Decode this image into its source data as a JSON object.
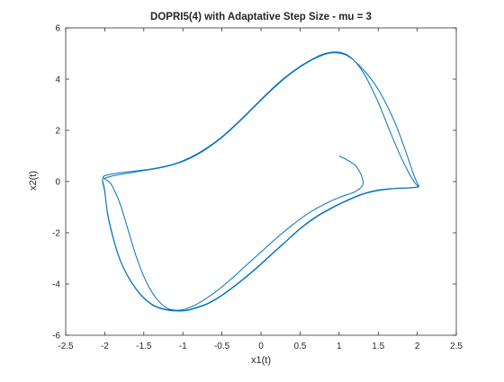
{
  "chart_data": {
    "type": "line",
    "title": "DOPRI5(4) with Adaptative Step Size - mu = 3",
    "xlabel": "x1(t)",
    "ylabel": "x2(t)",
    "xlim": [
      -2.5,
      2.5
    ],
    "ylim": [
      -6,
      6
    ],
    "xticks": [
      "-2.5",
      "-2",
      "-1.5",
      "-1",
      "-0.5",
      "0",
      "0.5",
      "1",
      "1.5",
      "2",
      "2.5"
    ],
    "yticks": [
      "-6",
      "-4",
      "-2",
      "0",
      "2",
      "4",
      "6"
    ],
    "grid": false,
    "legend": "none",
    "series": [
      {
        "color": "#0072BD",
        "x": [
          1.0,
          1.1,
          1.2,
          1.26,
          1.3,
          1.3,
          1.2,
          1.0,
          0.8,
          0.6,
          0.4,
          0.2,
          0.0,
          -0.2,
          -0.4,
          -0.6,
          -0.8,
          -0.9,
          -1.0,
          -1.1,
          -1.2,
          -1.3,
          -1.4,
          -1.5,
          -1.6,
          -1.7,
          -1.8,
          -1.9,
          -1.95,
          -2.0,
          -2.02,
          -2.0,
          -1.9,
          -1.7,
          -1.5,
          -1.3,
          -1.1,
          -0.9,
          -0.7,
          -0.5,
          -0.3,
          -0.1,
          0.1,
          0.3,
          0.5,
          0.7,
          0.8,
          0.9,
          1.0,
          1.1,
          1.2,
          1.3,
          1.4,
          1.5,
          1.6,
          1.7,
          1.8,
          1.9,
          1.97,
          2.0,
          2.02,
          2.0,
          1.9,
          1.7,
          1.5,
          1.3,
          1.1,
          0.9,
          0.7,
          0.5,
          0.3,
          0.1,
          -0.1,
          -0.3,
          -0.5,
          -0.7,
          -0.9,
          -1.0,
          -1.2,
          -1.4,
          -1.6,
          -1.8,
          -1.95,
          -2.0,
          -2.03,
          -2.0,
          -1.9,
          -1.7,
          -1.5,
          -1.3,
          -1.1,
          -0.9,
          -0.7,
          -0.5,
          -0.3,
          -0.1,
          0.1,
          0.3,
          0.5,
          0.7,
          0.9,
          1.1,
          1.3,
          1.5,
          1.7,
          1.85,
          1.95,
          2.0,
          2.02,
          2.0,
          1.9,
          1.7,
          1.5,
          1.3,
          1.1,
          0.9,
          0.7,
          0.5,
          0.3,
          0.1,
          -0.1,
          -0.3,
          -0.5,
          -0.7,
          -0.9,
          -1.0,
          -1.2,
          -1.4,
          -1.6,
          -1.8,
          -1.95,
          -2.0,
          -2.03
        ],
        "y": [
          1.0,
          0.85,
          0.65,
          0.4,
          0.1,
          -0.15,
          -0.4,
          -0.62,
          -0.9,
          -1.25,
          -1.7,
          -2.2,
          -2.75,
          -3.3,
          -3.85,
          -4.35,
          -4.75,
          -4.9,
          -5.0,
          -5.02,
          -4.95,
          -4.7,
          -4.3,
          -3.7,
          -2.9,
          -1.9,
          -0.9,
          -0.2,
          0.0,
          0.1,
          0.17,
          0.23,
          0.3,
          0.38,
          0.45,
          0.55,
          0.7,
          0.95,
          1.3,
          1.75,
          2.3,
          2.9,
          3.5,
          4.05,
          4.5,
          4.85,
          4.98,
          5.05,
          5.05,
          4.95,
          4.7,
          4.3,
          3.75,
          3.1,
          2.35,
          1.6,
          0.9,
          0.3,
          -0.05,
          -0.15,
          -0.2,
          -0.22,
          -0.25,
          -0.28,
          -0.35,
          -0.5,
          -0.75,
          -1.05,
          -1.4,
          -1.85,
          -2.4,
          -2.95,
          -3.5,
          -4.0,
          -4.45,
          -4.8,
          -5.0,
          -5.05,
          -5.02,
          -4.8,
          -4.2,
          -3.1,
          -1.5,
          -0.4,
          0.05,
          0.13,
          0.22,
          0.33,
          0.43,
          0.53,
          0.68,
          0.92,
          1.27,
          1.72,
          2.27,
          2.87,
          3.47,
          4.02,
          4.47,
          4.82,
          5.02,
          4.92,
          4.4,
          3.6,
          2.4,
          1.2,
          0.3,
          -0.05,
          -0.18,
          -0.21,
          -0.24,
          -0.27,
          -0.33,
          -0.48,
          -0.73,
          -1.03,
          -1.38,
          -1.83,
          -2.38,
          -2.93,
          -3.48,
          -3.98,
          -4.43,
          -4.78,
          -4.98,
          -5.04,
          -5.0,
          -4.78,
          -4.18,
          -3.08,
          -1.45,
          -0.35,
          0.05
        ]
      }
    ]
  }
}
